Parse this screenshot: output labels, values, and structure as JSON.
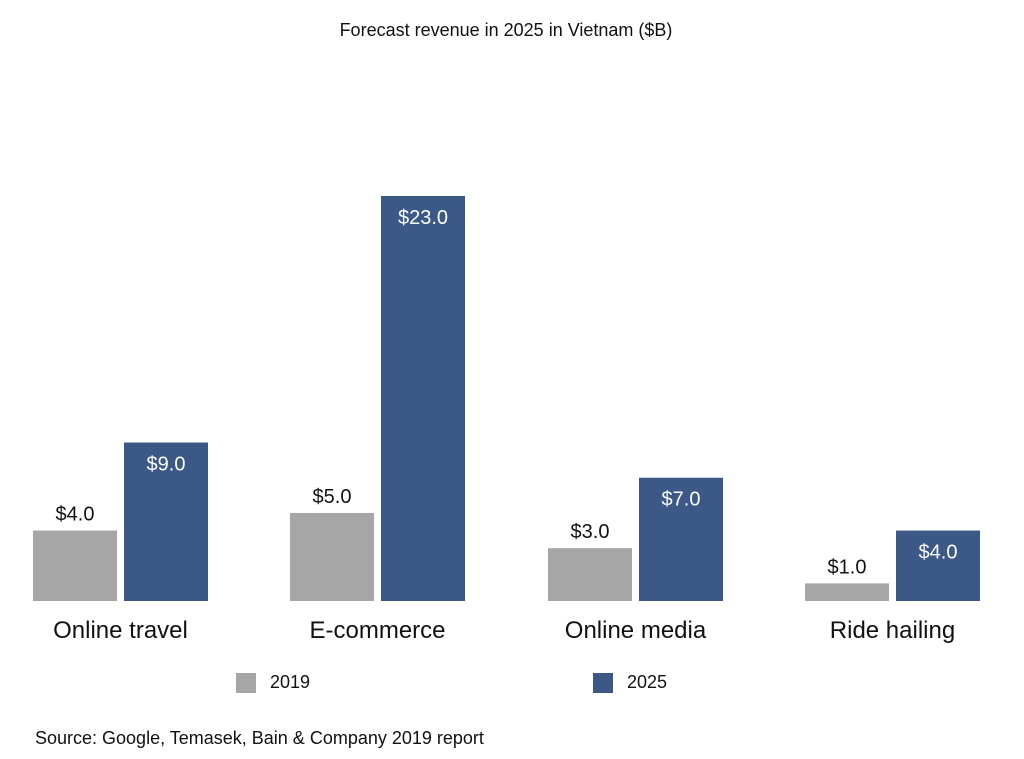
{
  "chart_data": {
    "type": "bar",
    "title": "Forecast revenue in 2025 in Vietnam ($B)",
    "categories": [
      "Online travel",
      "E-commerce",
      "Online media",
      "Ride hailing"
    ],
    "series": [
      {
        "name": "2019",
        "values": [
          4.0,
          5.0,
          3.0,
          1.0
        ],
        "color": "#a6a6a6",
        "labels": [
          "$4.0",
          "$5.0",
          "$3.0",
          "$1.0"
        ]
      },
      {
        "name": "2025",
        "values": [
          9.0,
          23.0,
          7.0,
          4.0
        ],
        "color": "#3b5887",
        "labels": [
          "$9.0",
          "$23.0",
          "$7.0",
          "$4.0"
        ]
      }
    ],
    "ylim": [
      0,
      23
    ],
    "grid": false,
    "legend": "bottom",
    "source": "Source: Google, Temasek, Bain & Company 2019 report"
  }
}
